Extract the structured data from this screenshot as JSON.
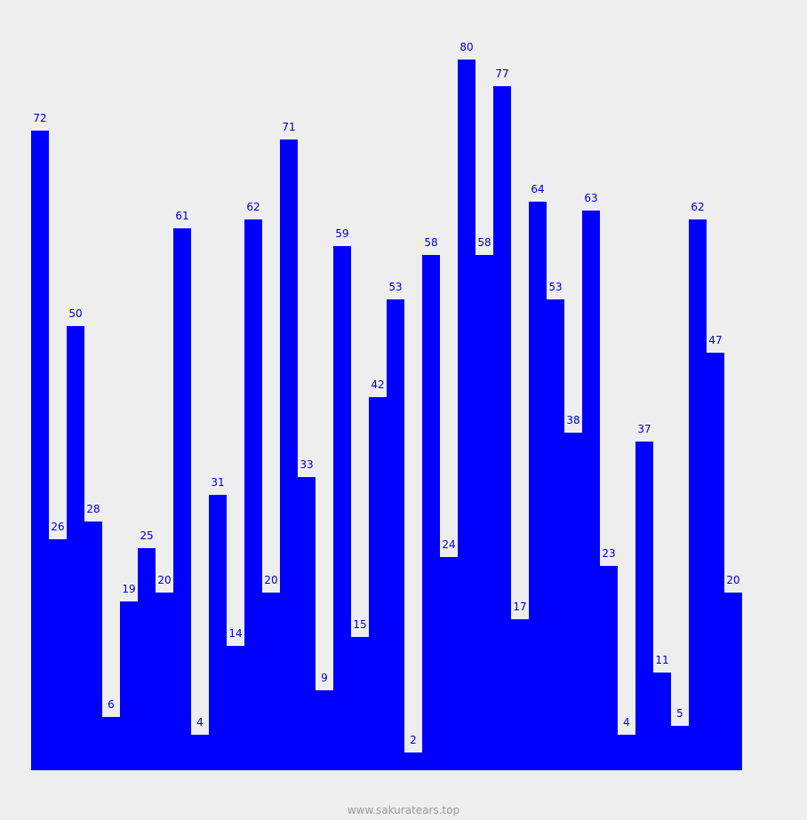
{
  "chart_data": {
    "type": "bar",
    "values": [
      72,
      26,
      50,
      28,
      6,
      19,
      25,
      20,
      61,
      4,
      31,
      14,
      62,
      20,
      71,
      33,
      9,
      59,
      15,
      42,
      53,
      2,
      58,
      24,
      80,
      58,
      77,
      17,
      64,
      53,
      38,
      63,
      23,
      4,
      37,
      11,
      5,
      62,
      47,
      20
    ],
    "data_labels": [
      "72",
      "26",
      "50",
      "28",
      "6",
      "19",
      "25",
      "20",
      "61",
      "4",
      "31",
      "14",
      "62",
      "20",
      "71",
      "33",
      "9",
      "59",
      "15",
      "42",
      "53",
      "2",
      "58",
      "24",
      "80",
      "58",
      "77",
      "17",
      "64",
      "53",
      "38",
      "63",
      "23",
      "4",
      "37",
      "11",
      "5",
      "62",
      "47",
      "20"
    ],
    "ylim": [
      0,
      80
    ],
    "grid": false,
    "legend": "none",
    "bar_color": "#0000ff",
    "label_color": "#0000cc",
    "background": "#eeeeee"
  },
  "watermark": "www.sakuratears.top"
}
